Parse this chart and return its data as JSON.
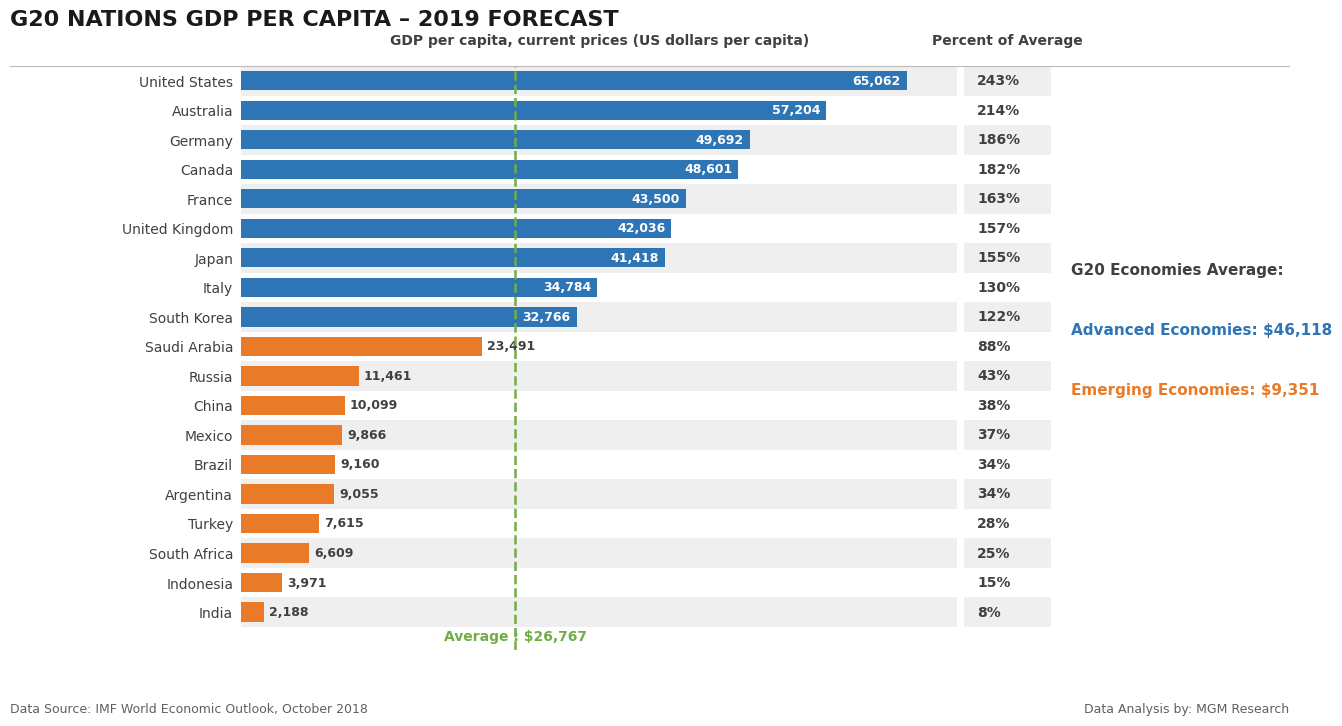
{
  "title": "G20 NATIONS GDP PER CAPITA – 2019 FORECAST",
  "col_header": "GDP per capita, current prices (US dollars per capita)",
  "col_header2": "Percent of Average",
  "countries": [
    "United States",
    "Australia",
    "Germany",
    "Canada",
    "France",
    "United Kingdom",
    "Japan",
    "Italy",
    "South Korea",
    "Saudi Arabia",
    "Russia",
    "China",
    "Mexico",
    "Brazil",
    "Argentina",
    "Turkey",
    "South Africa",
    "Indonesia",
    "India"
  ],
  "values": [
    65062,
    57204,
    49692,
    48601,
    43500,
    42036,
    41418,
    34784,
    32766,
    23491,
    11461,
    10099,
    9866,
    9160,
    9055,
    7615,
    6609,
    3971,
    2188
  ],
  "percents": [
    "243%",
    "214%",
    "186%",
    "182%",
    "163%",
    "157%",
    "155%",
    "130%",
    "122%",
    "88%",
    "43%",
    "38%",
    "37%",
    "34%",
    "34%",
    "28%",
    "25%",
    "15%",
    "8%"
  ],
  "colors": [
    "#2E75B6",
    "#2E75B6",
    "#2E75B6",
    "#2E75B6",
    "#2E75B6",
    "#2E75B6",
    "#2E75B6",
    "#2E75B6",
    "#2E75B6",
    "#E97B28",
    "#E97B28",
    "#E97B28",
    "#E97B28",
    "#E97B28",
    "#E97B28",
    "#E97B28",
    "#E97B28",
    "#E97B28",
    "#E97B28"
  ],
  "average_line": 26767,
  "average_label": "Average : $26,767",
  "legend_title": "G20 Economies Average:",
  "legend_advanced": "Advanced Economies: $46,118",
  "legend_emerging": "Emerging Economies: $9,351",
  "advanced_color": "#2E75B6",
  "emerging_color": "#E97B28",
  "legend_title_color": "#404040",
  "footer_left": "Data Source: IMF World Economic Outlook, October 2018",
  "footer_right": "Data Analysis by: MGM Research",
  "background_color": "#FFFFFF",
  "bar_text_color_blue": "#FFFFFF",
  "bar_text_color_orange": "#404040",
  "xmax": 70000,
  "alt_row_color": "#EFEFEF",
  "row_color": "#FFFFFF",
  "avg_line_color": "#70AD47",
  "separator_color": "#BBBBBB"
}
